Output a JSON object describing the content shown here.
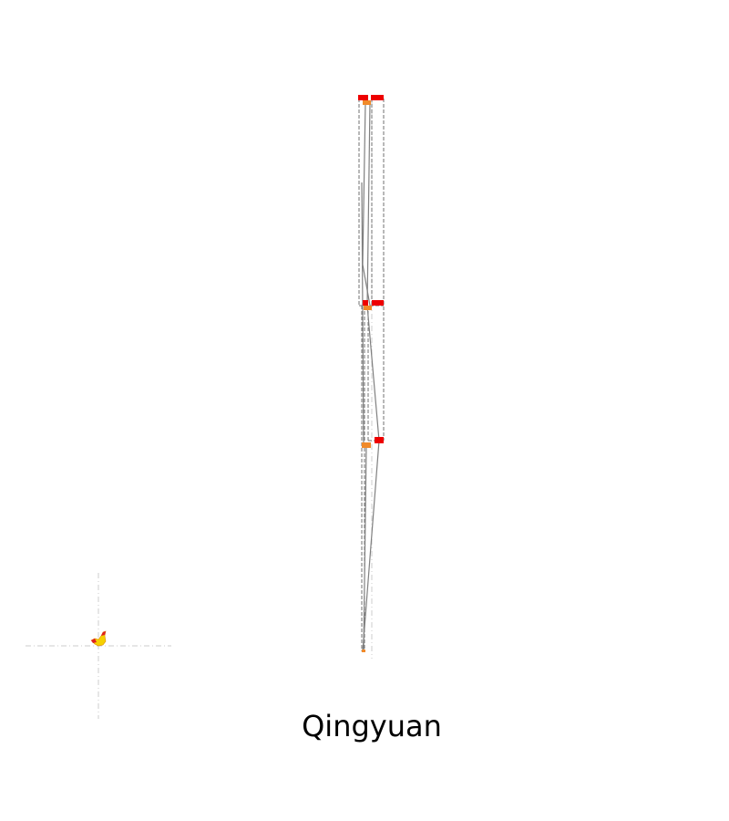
{
  "map": {
    "region_name": "Qingyuan",
    "colors": {
      "background": "#ffffff",
      "route_line": "#808080",
      "route_dashed": "#707070",
      "guide_line": "#cccccc",
      "station_major": "#ee0000",
      "station_minor": "#f08a2a",
      "inset_marker": "#f5d000",
      "inset_accent": "#e02020"
    },
    "icons": {
      "inset_marker": "rooster-shape-icon"
    }
  }
}
